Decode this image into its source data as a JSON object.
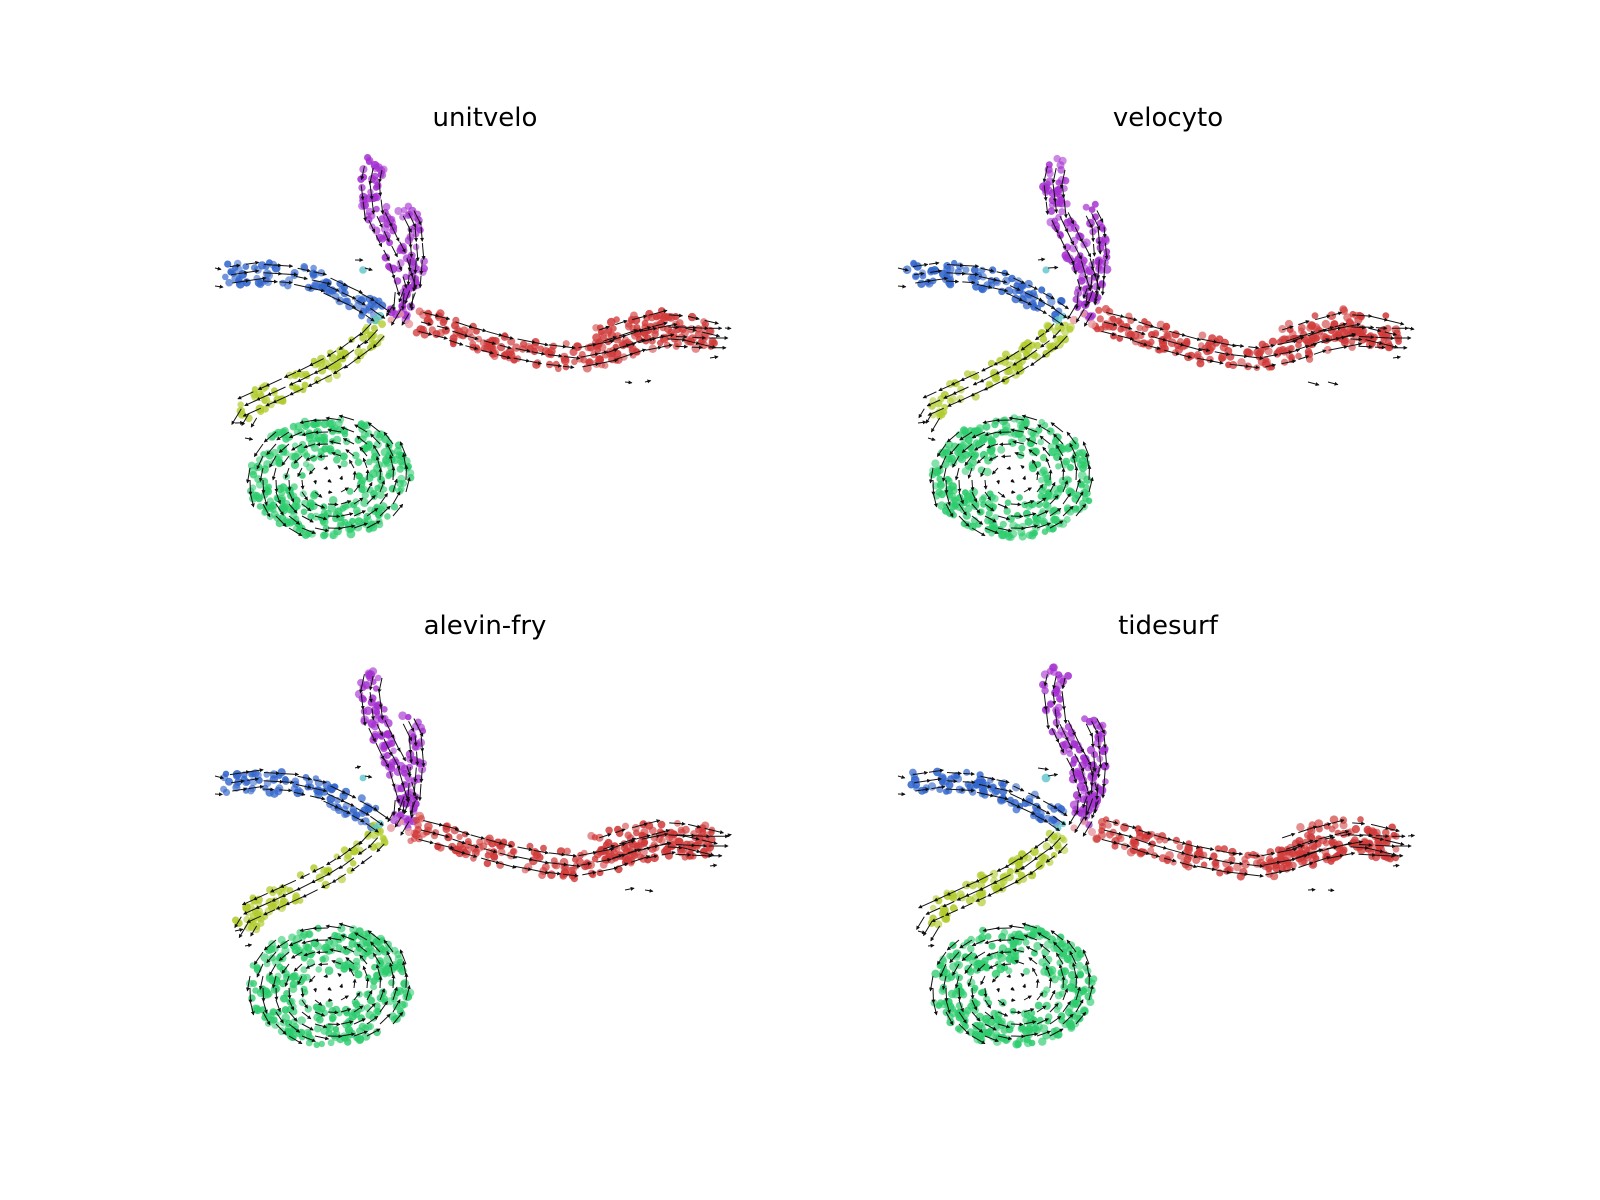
{
  "chart_data": {
    "type": "scatter",
    "embedding": "UMAP",
    "overlay": "velocity-grid-arrows",
    "colors": {
      "lineage_blue": "#3366cc",
      "lineage_purple": "#a530d0",
      "lineage_red": "#d13a3a",
      "lineage_lime": "#b0cc2e",
      "lineage_green": "#2ecc6e",
      "junction_cyan": "#5ec4c9",
      "junction_pink": "#e79aa0",
      "arrow": "#111111"
    },
    "panels": [
      {
        "title": "unitvelo"
      },
      {
        "title": "velocyto"
      },
      {
        "title": "alevin-fry"
      },
      {
        "title": "tidesurf"
      }
    ],
    "axes_visible": false,
    "grid": false,
    "legend": "none"
  }
}
